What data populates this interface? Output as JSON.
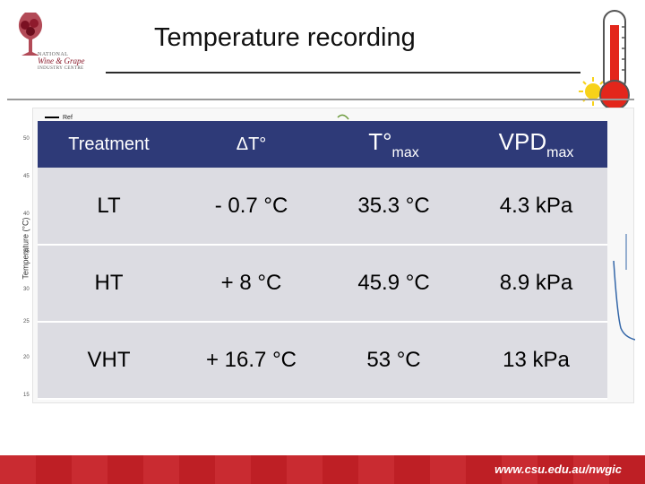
{
  "header": {
    "title": "Temperature recording"
  },
  "logo": {
    "line1": "NATIONAL",
    "line2": "Wine & Grape",
    "line3": "INDUSTRY CENTRE"
  },
  "graph": {
    "ylabel": "Temperature (°C)",
    "legend": "Ref",
    "yticks": [
      "50",
      "45",
      "40",
      "35",
      "30",
      "25",
      "20",
      "15"
    ]
  },
  "table": {
    "headers": {
      "treatment": "Treatment",
      "delta": "ΔT°",
      "tmax_main": "T°",
      "tmax_sub": "max",
      "vpd_main": "VPD",
      "vpd_sub": "max"
    },
    "rows": [
      {
        "treatment": "LT",
        "delta": "- 0.7 °C",
        "tmax": "35.3 °C",
        "vpd": "4.3 kPa"
      },
      {
        "treatment": "HT",
        "delta": "+ 8 °C",
        "tmax": "45.9 °C",
        "vpd": "8.9 kPa"
      },
      {
        "treatment": "VHT",
        "delta": "+ 16.7 °C",
        "tmax": "53 °C",
        "vpd": "13 kPa"
      }
    ]
  },
  "footer": {
    "url": "www.csu.edu.au/nwgic",
    "color": "#c62026"
  },
  "colors": {
    "header_bg": "#2e3a78",
    "cell_bg": "#dcdce2"
  }
}
